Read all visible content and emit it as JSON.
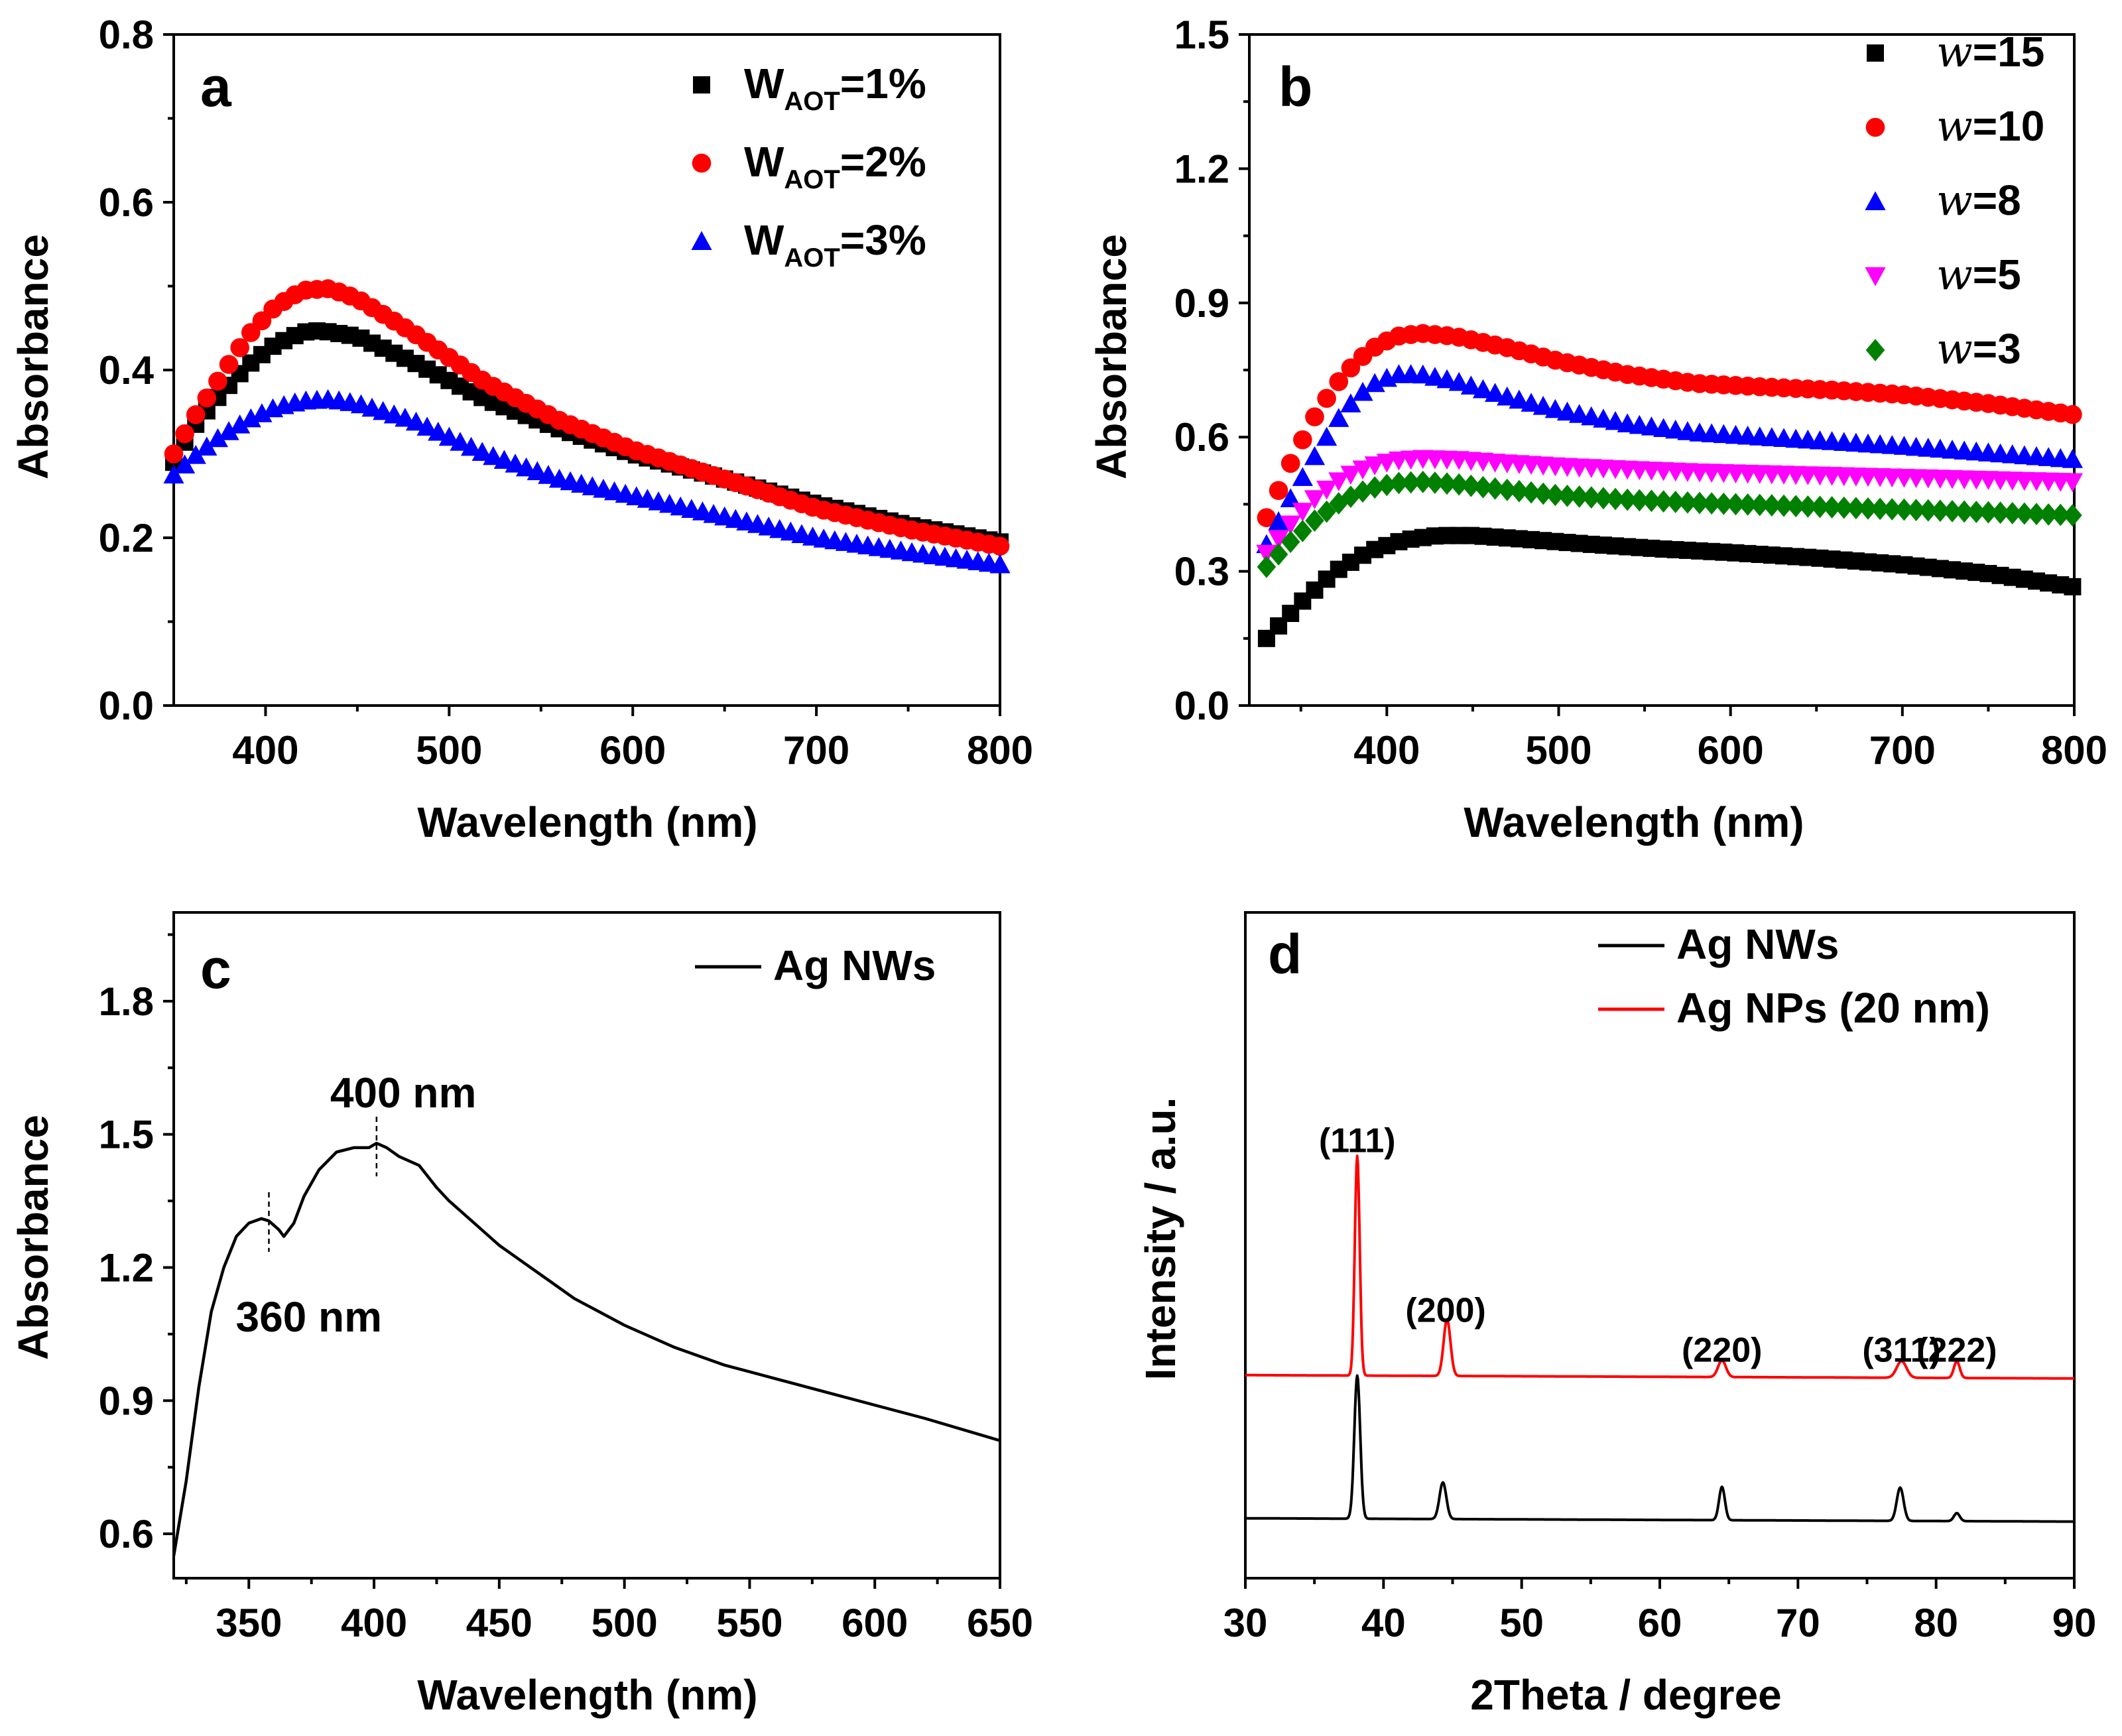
{
  "chart_data": [
    {
      "panel": "a",
      "type": "scatter",
      "xlabel": "Wavelength (nm)",
      "ylabel": "Absorbance",
      "xlim": [
        350,
        800
      ],
      "ylim": [
        0.0,
        0.8
      ],
      "xticks": [
        400,
        500,
        600,
        700,
        800
      ],
      "yticks": [
        0.0,
        0.2,
        0.4,
        0.6,
        0.8
      ],
      "yprec": 1,
      "legend_pos": "top-right",
      "legend": [
        {
          "main": "W",
          "sub": "AOT",
          "tail": "=1%",
          "marker": "square",
          "color": "#000000"
        },
        {
          "main": "W",
          "sub": "AOT",
          "tail": "=2%",
          "marker": "circle",
          "color": "#ff0000"
        },
        {
          "main": "W",
          "sub": "AOT",
          "tail": "=3%",
          "marker": "triangle",
          "color": "#0000ff"
        }
      ],
      "series": [
        {
          "name": "WAOT=1%",
          "marker": "square",
          "color": "#000000",
          "x_start": 350,
          "x_step": 6,
          "x": [
            350,
            360,
            375,
            390,
            405,
            420,
            430,
            450,
            480,
            520,
            560,
            600,
            650,
            700,
            750,
            800
          ],
          "y": [
            0.29,
            0.33,
            0.37,
            0.405,
            0.43,
            0.445,
            0.447,
            0.44,
            0.41,
            0.365,
            0.33,
            0.3,
            0.27,
            0.24,
            0.215,
            0.195
          ]
        },
        {
          "name": "WAOT=2%",
          "marker": "circle",
          "color": "#ff0000",
          "x_start": 350,
          "x_step": 6,
          "x": [
            350,
            360,
            375,
            390,
            405,
            420,
            435,
            450,
            480,
            520,
            560,
            600,
            650,
            700,
            750,
            800
          ],
          "y": [
            0.3,
            0.34,
            0.39,
            0.44,
            0.475,
            0.495,
            0.497,
            0.485,
            0.445,
            0.385,
            0.34,
            0.305,
            0.27,
            0.235,
            0.21,
            0.19
          ]
        },
        {
          "name": "WAOT=3%",
          "marker": "triangle",
          "color": "#0000ff",
          "x_start": 350,
          "x_step": 6,
          "x": [
            350,
            360,
            375,
            390,
            405,
            420,
            435,
            450,
            480,
            520,
            560,
            600,
            650,
            700,
            750,
            800
          ],
          "y": [
            0.275,
            0.295,
            0.32,
            0.34,
            0.355,
            0.363,
            0.365,
            0.36,
            0.34,
            0.3,
            0.27,
            0.25,
            0.225,
            0.2,
            0.183,
            0.168
          ]
        }
      ]
    },
    {
      "panel": "b",
      "type": "scatter",
      "xlabel": "Wavelength (nm)",
      "ylabel": "Absorbance",
      "xlim": [
        320,
        800
      ],
      "ylim": [
        0.0,
        1.5
      ],
      "xticks": [
        400,
        500,
        600,
        700,
        800
      ],
      "yticks": [
        0.0,
        0.3,
        0.6,
        0.9,
        1.2,
        1.5
      ],
      "yprec": 1,
      "legend_pos": "top-right",
      "legend": [
        {
          "main": "w",
          "sub": "",
          "tail": "=15",
          "marker": "square",
          "color": "#000000"
        },
        {
          "main": "w",
          "sub": "",
          "tail": "=10",
          "marker": "circle",
          "color": "#ff0000"
        },
        {
          "main": "w",
          "sub": "",
          "tail": "=8",
          "marker": "triangle",
          "color": "#0000ff"
        },
        {
          "main": "w",
          "sub": "",
          "tail": "=5",
          "marker": "triangle-down",
          "color": "#ff00ff"
        },
        {
          "main": "w",
          "sub": "",
          "tail": "=3",
          "marker": "diamond",
          "color": "#008000"
        }
      ],
      "series": [
        {
          "name": "w=15",
          "marker": "square",
          "color": "#000000",
          "x_start": 330,
          "x_step": 7,
          "x": [
            330,
            350,
            370,
            390,
            410,
            430,
            450,
            480,
            520,
            560,
            600,
            650,
            700,
            750,
            800
          ],
          "y": [
            0.15,
            0.23,
            0.3,
            0.345,
            0.37,
            0.38,
            0.38,
            0.372,
            0.36,
            0.35,
            0.342,
            0.33,
            0.315,
            0.295,
            0.265
          ]
        },
        {
          "name": "w=10",
          "marker": "circle",
          "color": "#ff0000",
          "x_start": 330,
          "x_step": 7,
          "x": [
            330,
            345,
            360,
            375,
            390,
            405,
            420,
            440,
            470,
            500,
            540,
            580,
            620,
            660,
            700,
            750,
            800
          ],
          "y": [
            0.42,
            0.55,
            0.66,
            0.74,
            0.795,
            0.825,
            0.832,
            0.825,
            0.8,
            0.77,
            0.74,
            0.72,
            0.712,
            0.705,
            0.695,
            0.675,
            0.65
          ]
        },
        {
          "name": "w=8",
          "marker": "triangle",
          "color": "#0000ff",
          "x_start": 330,
          "x_step": 7,
          "x": [
            330,
            345,
            360,
            375,
            390,
            405,
            420,
            440,
            470,
            500,
            540,
            580,
            620,
            660,
            700,
            750,
            800
          ],
          "y": [
            0.36,
            0.47,
            0.57,
            0.66,
            0.715,
            0.74,
            0.74,
            0.725,
            0.69,
            0.66,
            0.63,
            0.61,
            0.6,
            0.59,
            0.58,
            0.565,
            0.55
          ]
        },
        {
          "name": "w=5",
          "marker": "triangle-down",
          "color": "#ff00ff",
          "x_start": 330,
          "x_step": 7,
          "x": [
            330,
            345,
            360,
            375,
            390,
            405,
            420,
            440,
            470,
            500,
            540,
            580,
            620,
            660,
            700,
            750,
            800
          ],
          "y": [
            0.34,
            0.41,
            0.47,
            0.51,
            0.535,
            0.548,
            0.552,
            0.55,
            0.542,
            0.535,
            0.528,
            0.522,
            0.518,
            0.514,
            0.51,
            0.505,
            0.5
          ]
        },
        {
          "name": "w=3",
          "marker": "diamond",
          "color": "#008000",
          "x_start": 330,
          "x_step": 7,
          "x": [
            330,
            345,
            360,
            375,
            390,
            405,
            420,
            440,
            470,
            500,
            540,
            580,
            620,
            660,
            700,
            750,
            800
          ],
          "y": [
            0.31,
            0.37,
            0.42,
            0.46,
            0.485,
            0.497,
            0.5,
            0.495,
            0.482,
            0.47,
            0.46,
            0.453,
            0.448,
            0.443,
            0.438,
            0.432,
            0.425
          ]
        }
      ]
    },
    {
      "panel": "c",
      "type": "line",
      "xlabel": "Wavelength (nm)",
      "ylabel": "Absorbance",
      "xlim": [
        320,
        650
      ],
      "ylim": [
        0.5,
        2.0
      ],
      "xticks": [
        350,
        400,
        450,
        500,
        550,
        600,
        650
      ],
      "yticks": [
        0.6,
        0.9,
        1.2,
        1.5,
        1.8
      ],
      "yprec": 1,
      "legend_pos": "top-right",
      "legend": [
        {
          "main": "Ag NWs",
          "sub": "",
          "tail": "",
          "marker": "line",
          "color": "#000000"
        }
      ],
      "annotations": [
        {
          "text": "360 nm",
          "x": 358,
          "y": 1.31
        },
        {
          "text": "400 nm",
          "x": 401,
          "y": 1.48
        }
      ],
      "series": [
        {
          "name": "Ag NWs",
          "color": "#000000",
          "x": [
            320,
            325,
            330,
            335,
            340,
            345,
            350,
            355,
            358,
            362,
            364,
            368,
            372,
            378,
            385,
            392,
            398,
            401,
            405,
            410,
            418,
            425,
            430,
            440,
            450,
            460,
            470,
            480,
            490,
            500,
            520,
            540,
            560,
            580,
            600,
            620,
            650
          ],
          "y": [
            0.55,
            0.72,
            0.93,
            1.1,
            1.2,
            1.27,
            1.3,
            1.31,
            1.305,
            1.285,
            1.27,
            1.3,
            1.36,
            1.42,
            1.46,
            1.47,
            1.47,
            1.48,
            1.47,
            1.45,
            1.43,
            1.38,
            1.35,
            1.3,
            1.25,
            1.21,
            1.17,
            1.13,
            1.1,
            1.07,
            1.02,
            0.98,
            0.95,
            0.92,
            0.89,
            0.86,
            0.81
          ]
        }
      ]
    },
    {
      "panel": "d",
      "type": "line",
      "xlabel": "2Theta / degree",
      "ylabel": "Intensity / a.u.",
      "xlim": [
        30,
        90
      ],
      "ylim": [
        0,
        10
      ],
      "xticks": [
        30,
        40,
        50,
        60,
        70,
        80,
        90
      ],
      "yticks": [],
      "legend_pos": "top-right",
      "legend": [
        {
          "main": "Ag NWs",
          "sub": "",
          "tail": "",
          "marker": "line",
          "color": "#000000"
        },
        {
          "main": "Ag NPs (20 nm)",
          "sub": "",
          "tail": "",
          "marker": "line",
          "color": "#ff0000"
        }
      ],
      "annotations": [
        {
          "text": "(111)",
          "x": 38.1,
          "y": 6.4
        },
        {
          "text": "(200)",
          "x": 44.5,
          "y": 3.85
        },
        {
          "text": "(220)",
          "x": 64.5,
          "y": 3.25
        },
        {
          "text": "(311)",
          "x": 77.5,
          "y": 3.25
        },
        {
          "text": "(222)",
          "x": 81.5,
          "y": 3.25
        }
      ],
      "series": [
        {
          "name": "Ag NWs",
          "color": "#000000",
          "baseline_start": 0.9,
          "baseline_end": 0.85,
          "peaks": [
            [
              38.1,
              2.15,
              0.3
            ],
            [
              44.3,
              0.55,
              0.35
            ],
            [
              64.5,
              0.5,
              0.3
            ],
            [
              77.4,
              0.5,
              0.35
            ],
            [
              81.5,
              0.12,
              0.3
            ]
          ]
        },
        {
          "name": "Ag NPs (20 nm)",
          "color": "#ff0000",
          "baseline_start": 3.05,
          "baseline_end": 3.0,
          "peaks": [
            [
              38.1,
              3.3,
              0.25
            ],
            [
              44.6,
              0.85,
              0.35
            ],
            [
              64.5,
              0.25,
              0.4
            ],
            [
              77.5,
              0.25,
              0.5
            ],
            [
              81.5,
              0.25,
              0.3
            ]
          ]
        }
      ]
    }
  ],
  "panels": {
    "a": {
      "letter": "a",
      "xlabel": "Wavelength (nm)",
      "ylabel": "Absorbance"
    },
    "b": {
      "letter": "b",
      "xlabel": "Wavelength (nm)",
      "ylabel": "Absorbance"
    },
    "c": {
      "letter": "c",
      "xlabel": "Wavelength (nm)",
      "ylabel": "Absorbance"
    },
    "d": {
      "letter": "d",
      "xlabel": "2Theta / degree",
      "ylabel": "Intensity / a.u."
    }
  }
}
